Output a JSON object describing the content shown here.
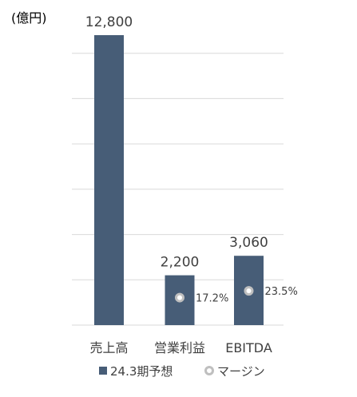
{
  "chart_data": {
    "type": "bar",
    "unit_label": "(億円)",
    "categories": [
      "売上高",
      "営業利益",
      "EBITDA"
    ],
    "series": [
      {
        "name": "24.3期予想",
        "color": "#475d77",
        "values": [
          12800,
          2200,
          3060
        ],
        "value_labels": [
          "12,800",
          "2,200",
          "3,060"
        ]
      },
      {
        "name": "マージン",
        "marker": "ring",
        "color": "#bfbfbf",
        "values": [
          null,
          17.2,
          23.5
        ],
        "value_labels": [
          "",
          "17.2%",
          "23.5%"
        ]
      }
    ],
    "ylim": [
      0,
      14000
    ],
    "grid": true,
    "legend_position": "bottom"
  }
}
